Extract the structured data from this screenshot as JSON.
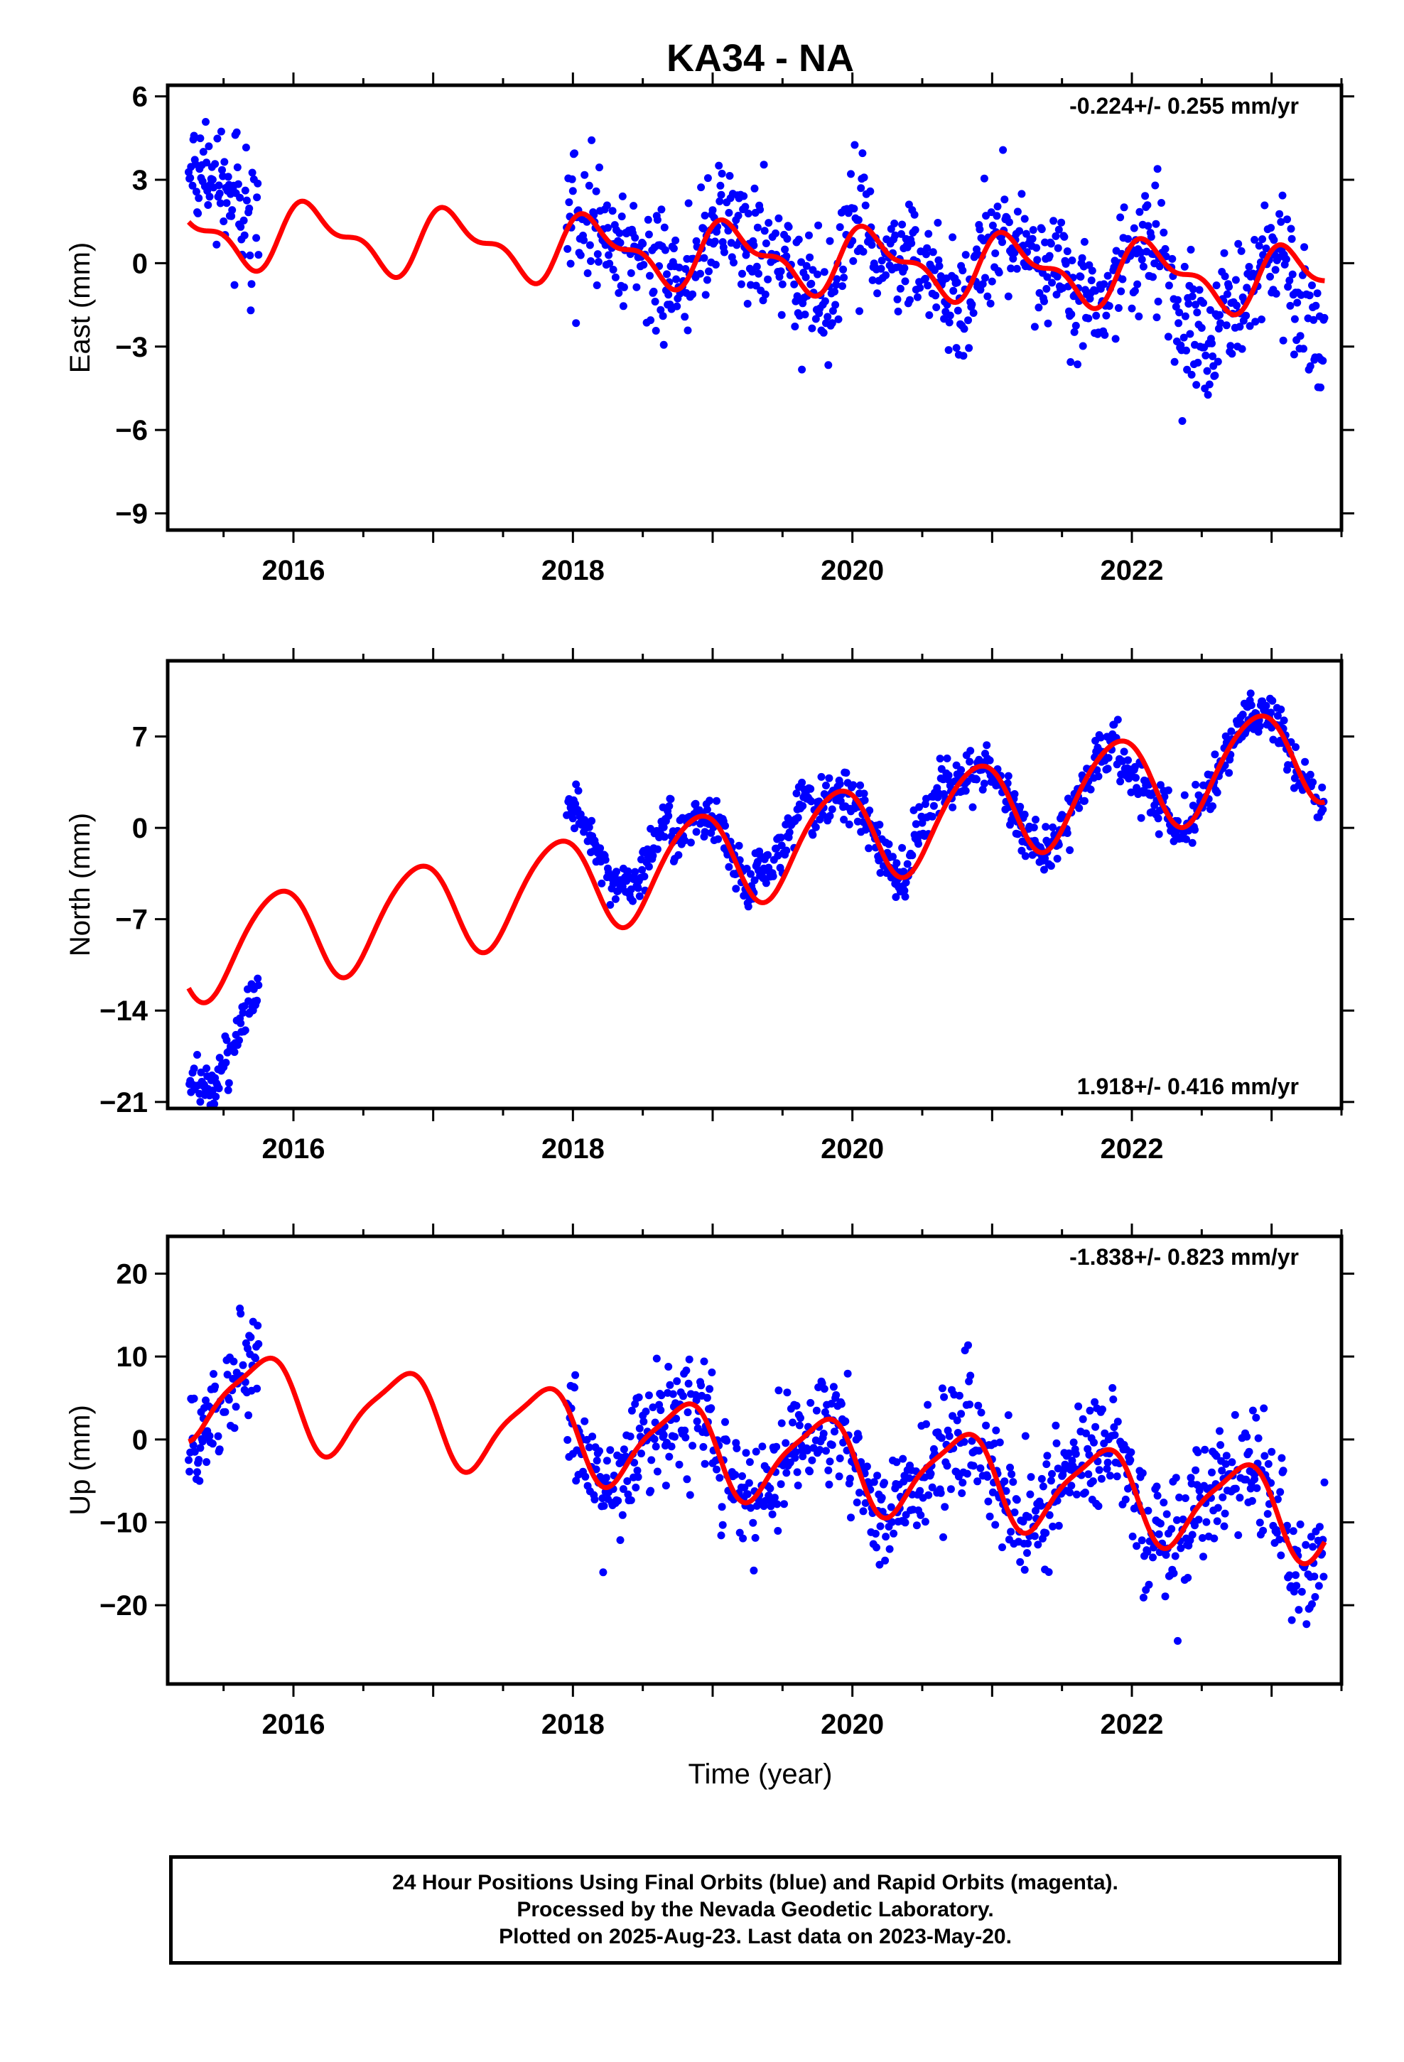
{
  "title": "KA34 - NA",
  "xlabel": "Time (year)",
  "footer": {
    "line1": "24 Hour Positions Using Final Orbits (blue) and Rapid Orbits (magenta).",
    "line2": "Processed by the Nevada Geodetic Laboratory.",
    "line3": "Plotted on 2025-Aug-23. Last data on 2023-May-20."
  },
  "colors": {
    "observations": "#0000ff",
    "model": "#ff0000",
    "frame": "#000000"
  },
  "chart_data": [
    {
      "type": "scatter",
      "component": "east",
      "ylabel": "East (mm)",
      "rate": "-0.224+/- 0.255 mm/yr",
      "rate_position": "top-right",
      "xlim": [
        2015.1,
        2023.5
      ],
      "ylim": [
        -9.6,
        6.4
      ],
      "yticks": [
        6,
        3,
        0,
        -3,
        -6,
        -9
      ],
      "ytick_labels": [
        "6",
        "3",
        "0",
        "−3",
        "−6",
        "−9"
      ],
      "xticks": [
        2016,
        2018,
        2020,
        2022
      ],
      "xtick_labels": [
        "2016",
        "2018",
        "2020",
        "2022"
      ],
      "data_start": 2015.25,
      "data_end": 2023.38,
      "gap": [
        2015.75,
        2017.95
      ],
      "model": {
        "rate": -0.224,
        "offset": 0.3,
        "annual_amp": 1.0,
        "annual_phase": 0.6,
        "semi_amp": 0.5,
        "semi_phase": 1.3,
        "ref_year": 2019.0
      },
      "scatter_sd": 1.1,
      "segment_shifts": [
        {
          "from": 2015.25,
          "to": 2015.75,
          "shift": 1.8
        },
        {
          "from": 2022.3,
          "to": 2022.6,
          "shift": -2.0
        },
        {
          "from": 2023.15,
          "to": 2023.38,
          "shift": -1.8
        }
      ]
    },
    {
      "type": "scatter",
      "component": "north",
      "ylabel": "North (mm)",
      "rate": "1.918+/- 0.416 mm/yr",
      "rate_position": "bottom-right",
      "xlim": [
        2015.1,
        2023.5
      ],
      "ylim": [
        -21.5,
        12.8
      ],
      "yticks": [
        7,
        0,
        -7,
        -14,
        -21
      ],
      "ytick_labels": [
        "7",
        "0",
        "−7",
        "−14",
        "−21"
      ],
      "xticks": [
        2016,
        2018,
        2020,
        2022
      ],
      "xtick_labels": [
        "2016",
        "2018",
        "2020",
        "2022"
      ],
      "data_start": 2015.25,
      "data_end": 2023.38,
      "gap": [
        2015.75,
        2017.95
      ],
      "model": {
        "rate": 1.918,
        "offset": -2.4,
        "annual_amp": 3.7,
        "annual_phase": 2.3,
        "semi_amp": 0.4,
        "semi_phase": 0.6,
        "ref_year": 2019.0
      },
      "scatter_sd": 0.9,
      "segment_shifts": [
        {
          "from": 2015.25,
          "to": 2015.75,
          "shift": -6.5
        },
        {
          "from": 2017.95,
          "to": 2018.3,
          "shift": 3.0
        },
        {
          "from": 2018.3,
          "to": 2018.7,
          "shift": 3.0
        },
        {
          "from": 2019.3,
          "to": 2019.7,
          "shift": 2.5
        },
        {
          "from": 2020.4,
          "to": 2020.7,
          "shift": 2.0
        },
        {
          "from": 2021.9,
          "to": 2022.2,
          "shift": -2.0
        }
      ]
    },
    {
      "type": "scatter",
      "component": "up",
      "ylabel": "Up (mm)",
      "rate": "-1.838+/- 0.823 mm/yr",
      "rate_position": "top-right",
      "xlim": [
        2015.1,
        2023.5
      ],
      "ylim": [
        -29.5,
        24.5
      ],
      "yticks": [
        20,
        10,
        0,
        -10,
        -20
      ],
      "ytick_labels": [
        "20",
        "10",
        "0",
        "−10",
        "−20"
      ],
      "xticks": [
        2016,
        2018,
        2020,
        2022
      ],
      "xtick_labels": [
        "2016",
        "2018",
        "2020",
        "2022"
      ],
      "data_start": 2015.25,
      "data_end": 2023.38,
      "gap": [
        2015.75,
        2017.95
      ],
      "model": {
        "rate": -1.838,
        "offset": -1.2,
        "annual_amp": 5.2,
        "annual_phase": 3.0,
        "semi_amp": 1.2,
        "semi_phase": 2.4,
        "ref_year": 2019.0
      },
      "scatter_sd": 3.6,
      "segment_shifts": []
    }
  ]
}
